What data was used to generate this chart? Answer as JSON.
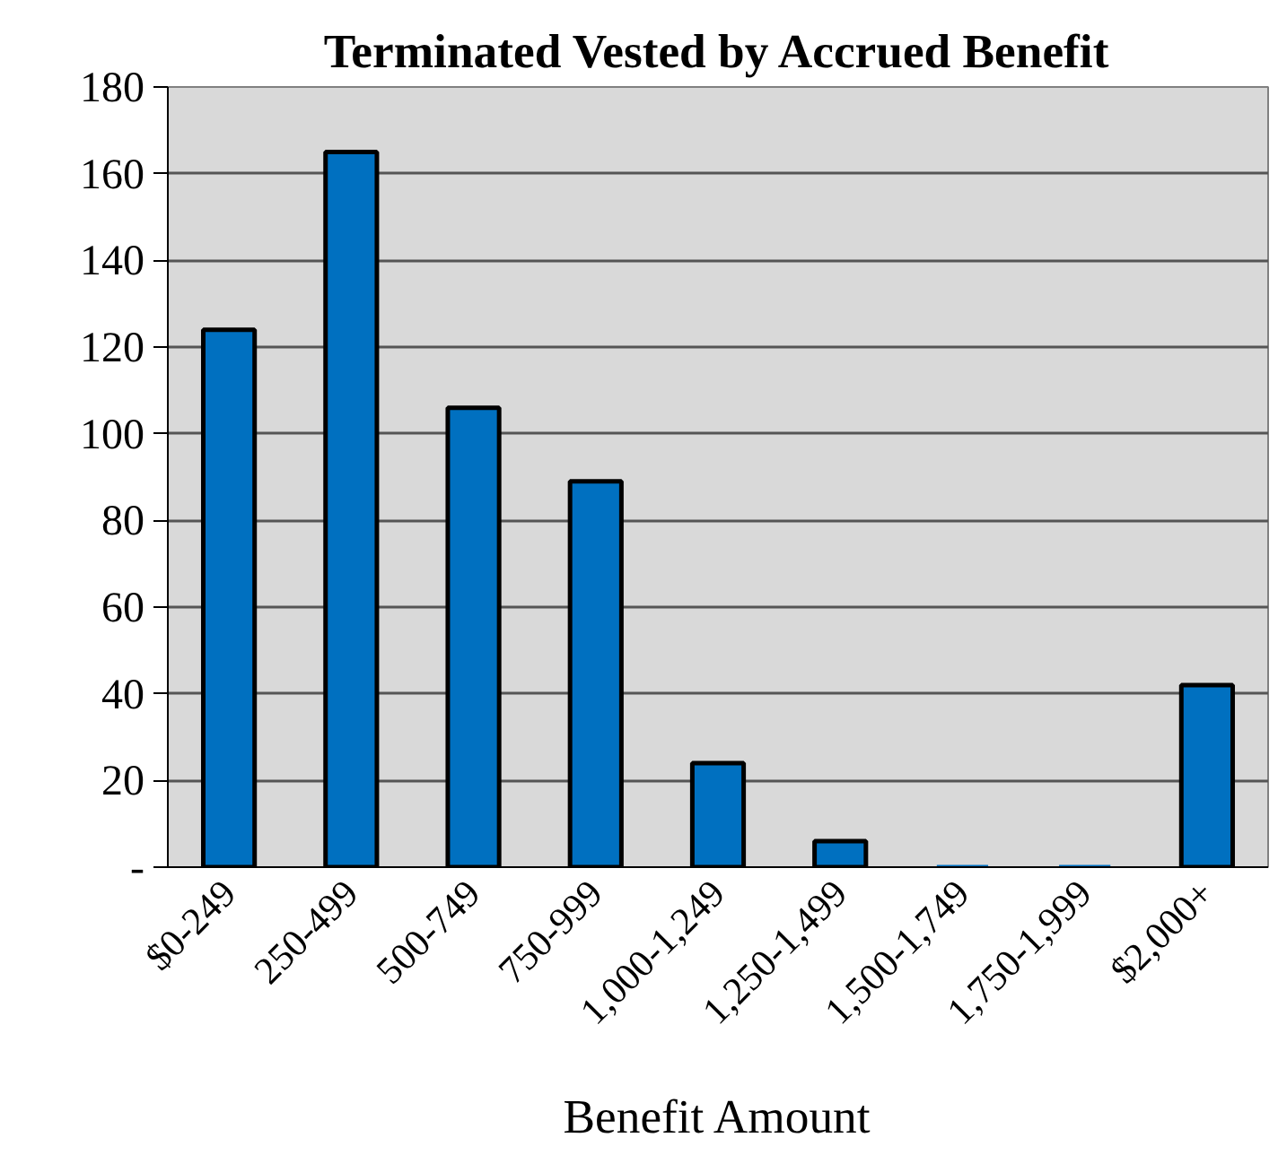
{
  "chart_data": {
    "type": "bar",
    "title": "Terminated Vested by Accrued Benefit",
    "xlabel": "Benefit Amount",
    "categories": [
      "$0-249",
      "250-499",
      "500-749",
      "750-999",
      "1,000-1,249",
      "1,250-1,499",
      "1,500-1,749",
      "1,750-1,999",
      "$2,000+"
    ],
    "values": [
      124,
      165,
      106,
      89,
      24,
      6,
      0,
      0,
      42
    ],
    "color": "#0070c0",
    "ylim": [
      0,
      180
    ],
    "yticks": [
      {
        "value": 0,
        "label": "-"
      },
      20,
      40,
      60,
      80,
      100,
      120,
      140,
      160,
      180
    ],
    "grid": "y"
  }
}
